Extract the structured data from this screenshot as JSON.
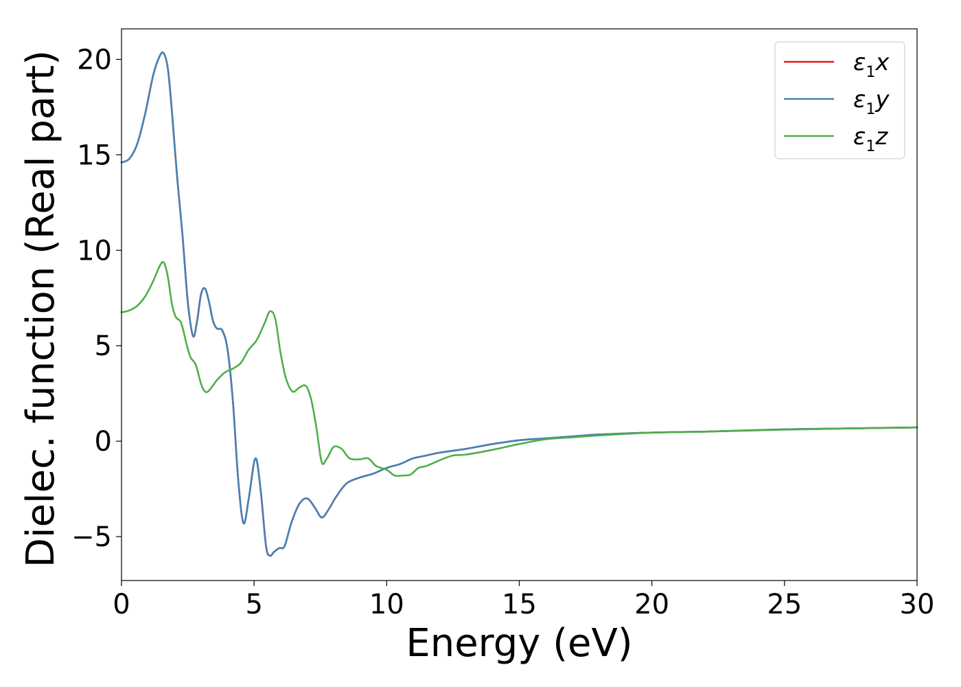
{
  "chart_data": {
    "type": "line",
    "title": "",
    "xlabel": "Energy (eV)",
    "ylabel": "Dielec. function (Real part)",
    "xlim": [
      0,
      30
    ],
    "ylim": [
      -7.3,
      21.6
    ],
    "xticks": [
      0,
      5,
      10,
      15,
      20,
      25,
      30
    ],
    "xtick_labels": [
      "0",
      "5",
      "10",
      "15",
      "20",
      "25",
      "30"
    ],
    "yticks": [
      -5,
      0,
      5,
      10,
      15,
      20
    ],
    "ytick_labels": [
      "−5",
      "0",
      "5",
      "10",
      "15",
      "20"
    ],
    "grid": false,
    "legend_position": "top-right",
    "series": [
      {
        "name": "ε₁x",
        "legend_base": "ε",
        "legend_sub": "1",
        "legend_var": "x",
        "color": "#e41a1c",
        "x": [
          0,
          0.3,
          0.6,
          0.9,
          1.2,
          1.45,
          1.6,
          1.75,
          1.9,
          2.1,
          2.3,
          2.5,
          2.7,
          2.85,
          3.0,
          3.15,
          3.3,
          3.45,
          3.6,
          3.8,
          4.0,
          4.2,
          4.4,
          4.6,
          4.8,
          5.05,
          5.25,
          5.45,
          5.6,
          5.75,
          5.95,
          6.15,
          6.4,
          6.7,
          7.0,
          7.3,
          7.55,
          7.8,
          8.1,
          8.5,
          9.0,
          9.5,
          10.0,
          10.5,
          11.0,
          11.5,
          12.0,
          13.0,
          14.0,
          15.0,
          16.0,
          17.0,
          18.0,
          20.0,
          22.0,
          25.0,
          28.0,
          30.0
        ],
        "y": [
          14.6,
          14.8,
          15.6,
          17.2,
          19.2,
          20.2,
          20.3,
          19.5,
          17.3,
          13.8,
          10.8,
          7.3,
          5.5,
          6.3,
          7.7,
          8.0,
          7.3,
          6.3,
          5.9,
          5.8,
          4.8,
          2.1,
          -2.0,
          -4.3,
          -3.0,
          -0.9,
          -2.6,
          -5.5,
          -6.0,
          -5.8,
          -5.6,
          -5.5,
          -4.3,
          -3.3,
          -3.0,
          -3.5,
          -4.0,
          -3.6,
          -2.9,
          -2.2,
          -1.9,
          -1.7,
          -1.4,
          -1.2,
          -0.9,
          -0.75,
          -0.6,
          -0.4,
          -0.15,
          0.05,
          0.15,
          0.25,
          0.35,
          0.45,
          0.5,
          0.62,
          0.68,
          0.72
        ]
      },
      {
        "name": "ε₁y",
        "legend_base": "ε",
        "legend_sub": "1",
        "legend_var": "y",
        "color": "#4682b4",
        "x": [
          0,
          0.3,
          0.6,
          0.9,
          1.2,
          1.45,
          1.6,
          1.75,
          1.9,
          2.1,
          2.3,
          2.5,
          2.7,
          2.85,
          3.0,
          3.15,
          3.3,
          3.45,
          3.6,
          3.8,
          4.0,
          4.2,
          4.4,
          4.6,
          4.8,
          5.05,
          5.25,
          5.45,
          5.6,
          5.75,
          5.95,
          6.15,
          6.4,
          6.7,
          7.0,
          7.3,
          7.55,
          7.8,
          8.1,
          8.5,
          9.0,
          9.5,
          10.0,
          10.5,
          11.0,
          11.5,
          12.0,
          13.0,
          14.0,
          15.0,
          16.0,
          17.0,
          18.0,
          20.0,
          22.0,
          25.0,
          28.0,
          30.0
        ],
        "y": [
          14.6,
          14.8,
          15.6,
          17.2,
          19.2,
          20.2,
          20.3,
          19.5,
          17.3,
          13.8,
          10.8,
          7.3,
          5.5,
          6.3,
          7.7,
          8.0,
          7.3,
          6.3,
          5.9,
          5.8,
          4.8,
          2.1,
          -2.0,
          -4.3,
          -3.0,
          -0.9,
          -2.6,
          -5.5,
          -6.0,
          -5.8,
          -5.6,
          -5.5,
          -4.3,
          -3.3,
          -3.0,
          -3.5,
          -4.0,
          -3.6,
          -2.9,
          -2.2,
          -1.9,
          -1.7,
          -1.4,
          -1.2,
          -0.9,
          -0.75,
          -0.6,
          -0.4,
          -0.15,
          0.05,
          0.15,
          0.25,
          0.35,
          0.45,
          0.5,
          0.62,
          0.68,
          0.72
        ]
      },
      {
        "name": "ε₁z",
        "legend_base": "ε",
        "legend_sub": "1",
        "legend_var": "z",
        "color": "#4daf4a",
        "x": [
          0,
          0.3,
          0.6,
          0.9,
          1.2,
          1.45,
          1.6,
          1.75,
          1.9,
          2.05,
          2.25,
          2.45,
          2.6,
          2.8,
          3.0,
          3.15,
          3.3,
          3.6,
          3.9,
          4.2,
          4.5,
          4.8,
          5.1,
          5.4,
          5.6,
          5.8,
          6.0,
          6.2,
          6.45,
          6.7,
          6.95,
          7.15,
          7.35,
          7.55,
          7.75,
          8.0,
          8.3,
          8.6,
          9.0,
          9.3,
          9.6,
          10.0,
          10.3,
          10.6,
          10.9,
          11.2,
          11.5,
          12.0,
          12.5,
          13.0,
          14.0,
          15.0,
          16.0,
          17.0,
          18.0,
          20.0,
          22.0,
          25.0,
          28.0,
          30.0
        ],
        "y": [
          6.75,
          6.85,
          7.1,
          7.6,
          8.4,
          9.2,
          9.35,
          8.6,
          7.2,
          6.5,
          6.2,
          5.1,
          4.4,
          4.0,
          3.0,
          2.6,
          2.65,
          3.2,
          3.6,
          3.8,
          4.1,
          4.8,
          5.3,
          6.2,
          6.8,
          6.4,
          4.6,
          3.3,
          2.6,
          2.8,
          2.9,
          2.2,
          0.7,
          -1.1,
          -0.9,
          -0.3,
          -0.4,
          -0.9,
          -0.95,
          -0.9,
          -1.3,
          -1.5,
          -1.8,
          -1.8,
          -1.75,
          -1.4,
          -1.3,
          -1.0,
          -0.75,
          -0.7,
          -0.45,
          -0.15,
          0.1,
          0.2,
          0.3,
          0.45,
          0.5,
          0.6,
          0.68,
          0.72
        ]
      }
    ]
  }
}
